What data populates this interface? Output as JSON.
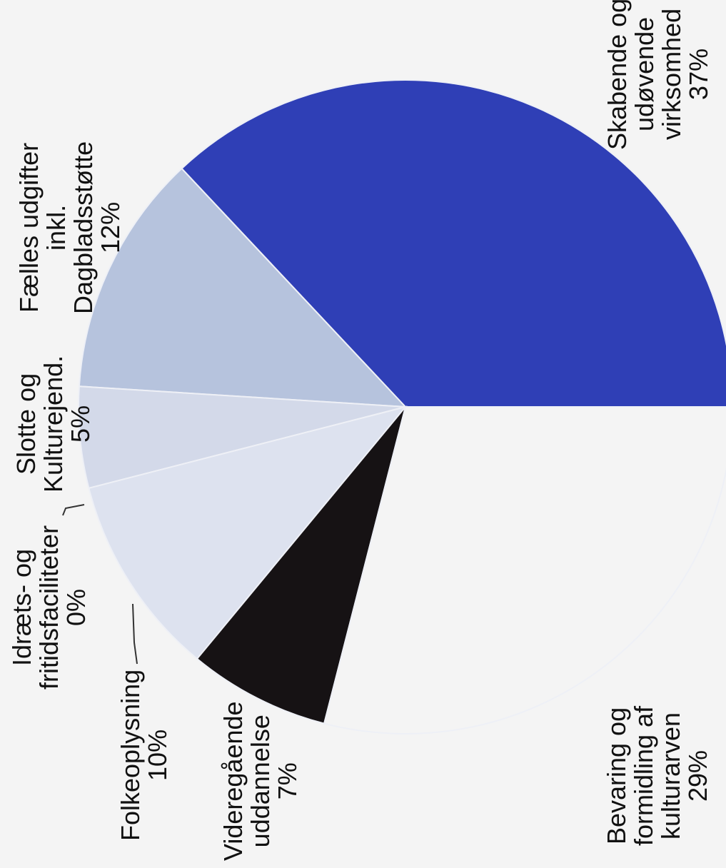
{
  "chart_data": {
    "type": "pie",
    "slices": [
      {
        "name": "Skabende og udøvende virksomhed",
        "value": 37,
        "label_lines": [
          "Skabende og",
          "udøvende",
          "virksomhed",
          "37%"
        ],
        "color": "#2f3fb6"
      },
      {
        "name": "Fælles udgifter inkl. Dagbladsstøtte",
        "value": 12,
        "label_lines": [
          "Fælles udgifter",
          "inkl.",
          "Dagbladsstøtte",
          "12%"
        ],
        "color": "#b6c3dd"
      },
      {
        "name": "Slotte og Kulturejend.",
        "value": 5,
        "label_lines": [
          "Slotte og",
          "Kulturejend.",
          "5%"
        ],
        "color": "#d3d9e9"
      },
      {
        "name": "Idræts- og fritidsfaciliteter",
        "value": 0,
        "label_lines": [
          "Idræts- og",
          "fritidsfaciliteter",
          "0%"
        ],
        "color": "#d9deeb"
      },
      {
        "name": "Folkeoplysning",
        "value": 10,
        "label_lines": [
          "Folkeoplysning",
          "10%"
        ],
        "color": "#dde2ef"
      },
      {
        "name": "Videregående uddannelse",
        "value": 7,
        "label_lines": [
          "Videregående",
          "uddannelse",
          "7%"
        ],
        "color": "#161214"
      },
      {
        "name": "Bevaring og formidling af kulturarven",
        "value": 29,
        "label_lines": [
          "Bevaring og",
          "formidling af",
          "kulturarven",
          "29%"
        ],
        "color": "#f4f4f4"
      }
    ]
  }
}
